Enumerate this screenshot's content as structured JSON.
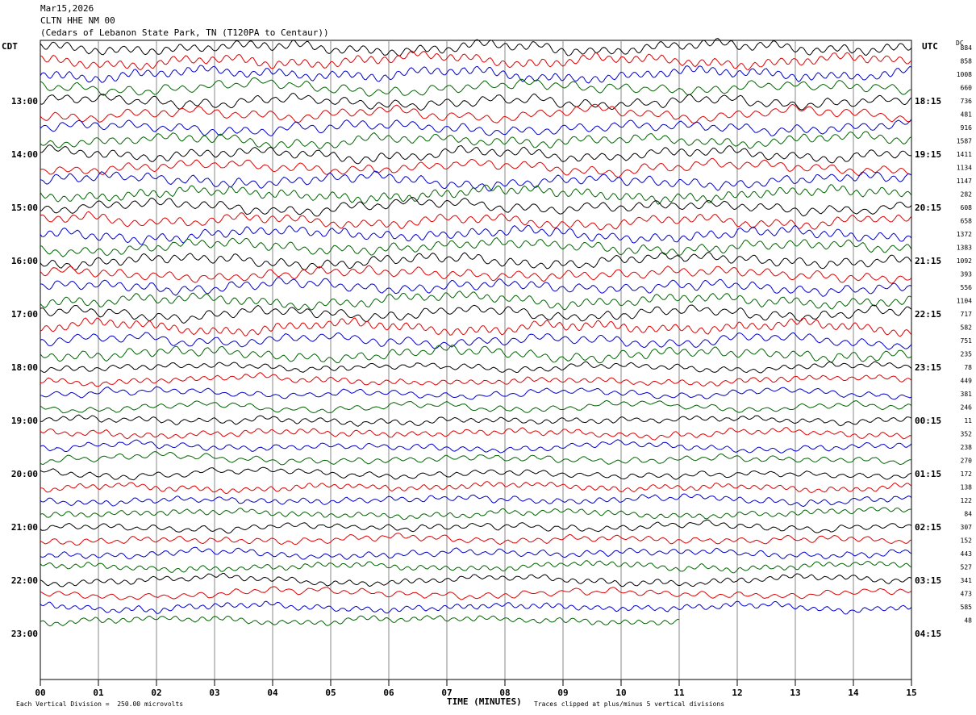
{
  "header": {
    "date": "Mar15,2026",
    "station": "CLTN HHE NM 00",
    "location": "(Cedars of Lebanon State Park, TN (T120PA to Centaur))"
  },
  "left_tz": "CDT",
  "right_tz": "UTC",
  "dc_label": "DC",
  "footer": {
    "scale": "Each Vertical Division =  250.00 microvolts",
    "clip": "Traces clipped at plus/minus 5 vertical divisions",
    "xlabel": "TIME (MINUTES)"
  },
  "colors": {
    "black": "#000000",
    "red": "#e00000",
    "blue": "#0000cc",
    "green": "#006400",
    "grid": "#888888"
  },
  "chart_data": {
    "type": "line",
    "title": "CLTN HHE NM 00",
    "xlabel": "TIME (MINUTES)",
    "xlim": [
      0,
      15
    ],
    "x_ticks": [
      "00",
      "01",
      "02",
      "03",
      "04",
      "05",
      "06",
      "07",
      "08",
      "09",
      "10",
      "11",
      "12",
      "13",
      "14",
      "15"
    ],
    "left_hour_labels": [
      "13:00",
      "14:00",
      "15:00",
      "16:00",
      "17:00",
      "18:00",
      "19:00",
      "20:00",
      "21:00",
      "22:00",
      "23:00"
    ],
    "right_hour_labels": [
      "18:15",
      "19:15",
      "20:15",
      "21:15",
      "22:15",
      "23:15",
      "00:15",
      "01:15",
      "02:15",
      "03:15",
      "04:15"
    ],
    "trace_color_cycle": [
      "black",
      "red",
      "blue",
      "green"
    ],
    "trace_count": 44,
    "last_trace_end_minute": 11,
    "dc_offsets": [
      884,
      858,
      1008,
      660,
      736,
      481,
      916,
      1587,
      1411,
      1134,
      1147,
      282,
      608,
      658,
      1372,
      1383,
      1092,
      393,
      556,
      1104,
      717,
      582,
      751,
      235,
      78,
      449,
      381,
      246,
      11,
      352,
      238,
      270,
      172,
      138,
      122,
      84,
      307,
      152,
      443,
      527,
      341,
      473,
      585,
      48
    ]
  }
}
